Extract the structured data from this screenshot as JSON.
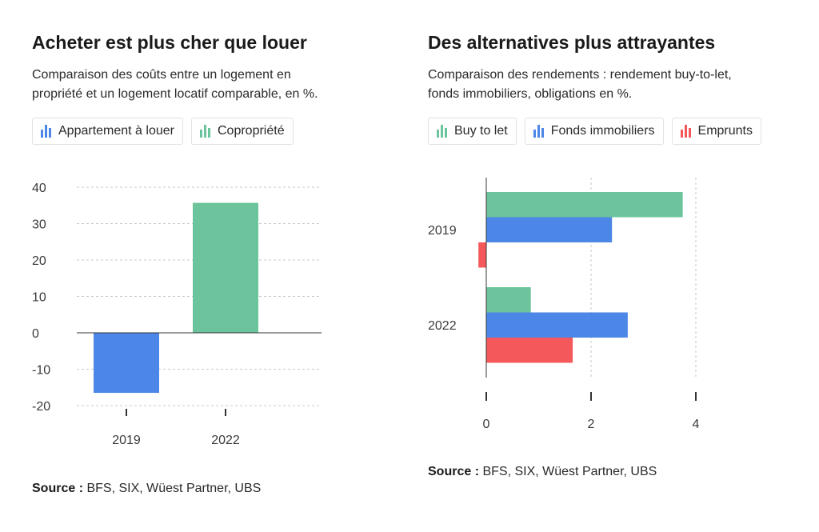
{
  "colors": {
    "blue": "#4c86e6",
    "green": "#6cc49c",
    "red": "#f5585a",
    "grid": "#c8c8c8",
    "axis": "#333333"
  },
  "left": {
    "title": "Acheter est plus cher que louer",
    "subtitle_line1": "Comparaison des coûts entre un logement en",
    "subtitle_line2": "propriété et un logement locatif comparable, en %.",
    "legend": [
      {
        "label": "Appartement à louer",
        "color": "#4c86e6",
        "icon": "bar-chart-icon"
      },
      {
        "label": "Copropriété",
        "color": "#6cc49c",
        "icon": "bar-chart-icon"
      }
    ],
    "source_label": "Source :",
    "source_text": " BFS, SIX, Wüest Partner, UBS"
  },
  "right": {
    "title": "Des alternatives plus attrayantes",
    "subtitle_line1": "Comparaison des rendements : rendement buy-to-let,",
    "subtitle_line2": "fonds immobiliers, obligations en %.",
    "legend": [
      {
        "label": "Buy to let",
        "color": "#6cc49c",
        "icon": "bar-chart-icon"
      },
      {
        "label": "Fonds immobiliers",
        "color": "#4c86e6",
        "icon": "bar-chart-icon"
      },
      {
        "label": "Emprunts",
        "color": "#f5585a",
        "icon": "bar-chart-icon"
      }
    ],
    "source_label": "Source :",
    "source_text": " BFS, SIX, Wüest Partner, UBS"
  },
  "chart_data": [
    {
      "type": "bar",
      "orientation": "vertical",
      "title": "Acheter est plus cher que louer",
      "categories": [
        "2019",
        "2022"
      ],
      "series": [
        {
          "name": "Appartement à louer",
          "color": "#4c86e6",
          "values": [
            -16.5,
            null
          ]
        },
        {
          "name": "Copropriété",
          "color": "#6cc49c",
          "values": [
            null,
            35.7
          ]
        }
      ],
      "ylim": [
        -20,
        40
      ],
      "yticks": [
        40,
        30,
        20,
        10,
        0,
        -10,
        -20
      ],
      "grid": true,
      "legend": "top"
    },
    {
      "type": "bar",
      "orientation": "horizontal",
      "title": "Des alternatives plus attrayantes",
      "categories": [
        "2019",
        "2022"
      ],
      "series": [
        {
          "name": "Buy to let",
          "color": "#6cc49c",
          "values": [
            3.75,
            0.85
          ]
        },
        {
          "name": "Fonds immobiliers",
          "color": "#4c86e6",
          "values": [
            2.4,
            2.7
          ]
        },
        {
          "name": "Emprunts",
          "color": "#f5585a",
          "values": [
            -0.15,
            1.65
          ]
        }
      ],
      "xlim": [
        0,
        4
      ],
      "xticks": [
        0,
        2,
        4
      ],
      "grid": true,
      "legend": "top"
    }
  ]
}
